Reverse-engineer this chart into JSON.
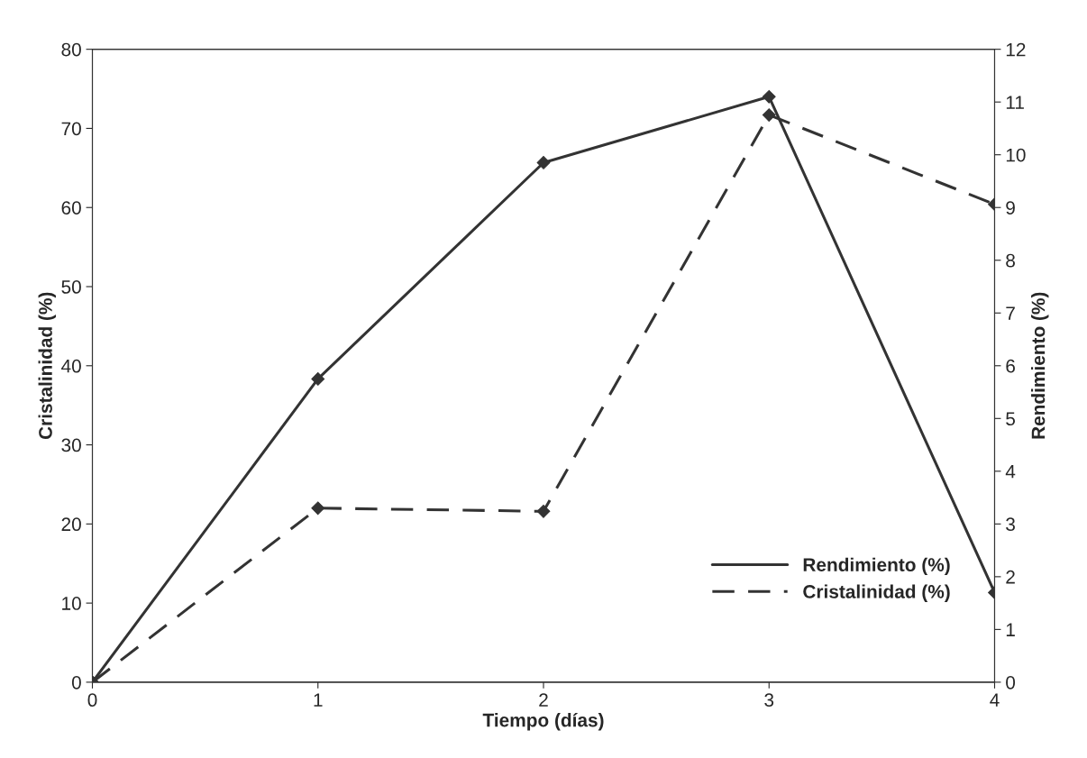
{
  "chart_data": {
    "type": "line",
    "xlabel": "Tiempo (días)",
    "ylabel": "Cristalinidad (%)",
    "y2label": "Rendimiento (%)",
    "x": [
      0,
      1,
      2,
      3,
      4
    ],
    "series": [
      {
        "name": "Rendimiento (%)",
        "color": "#333333",
        "values": [
          0,
          5.75,
          9.85,
          11.1,
          1.7
        ],
        "axis": "y2",
        "line_style": "solid"
      },
      {
        "name": "Cristalinidad (%)",
        "color": "#333333",
        "values": [
          0,
          22,
          21.6,
          71.7,
          60.4
        ],
        "line_style": "dashed"
      }
    ],
    "xlim": [
      0,
      4
    ],
    "xticks": [
      0,
      1,
      2,
      3,
      4
    ],
    "ylim": [
      0,
      80
    ],
    "yticks": [
      0,
      10,
      20,
      30,
      40,
      50,
      60,
      70,
      80
    ],
    "y2lim": [
      0,
      12
    ],
    "y2ticks": [
      0,
      1,
      2,
      3,
      4,
      5,
      6,
      7,
      8,
      9,
      10,
      11,
      12
    ],
    "marker": "diamond",
    "legend": "bottom right",
    "grid": false
  }
}
